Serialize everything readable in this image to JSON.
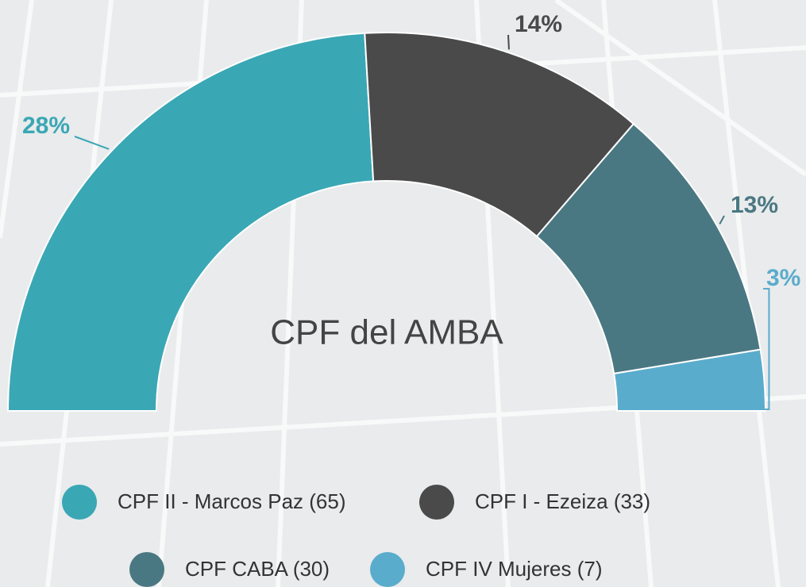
{
  "chart_data": {
    "type": "semi-donut",
    "title": "CPF del AMBA",
    "categories": [
      "CPF II - Marcos Paz (65)",
      "CPF I - Ezeiza (33)",
      "CPF CABA (30)",
      "CPF IV Mujeres (7)"
    ],
    "values": [
      65,
      33,
      30,
      7
    ],
    "labels": [
      "28%",
      "14%",
      "13%",
      "3%"
    ],
    "colors": [
      "#3aa7b5",
      "#4a4a4a",
      "#4a7882",
      "#5aaccc"
    ]
  }
}
